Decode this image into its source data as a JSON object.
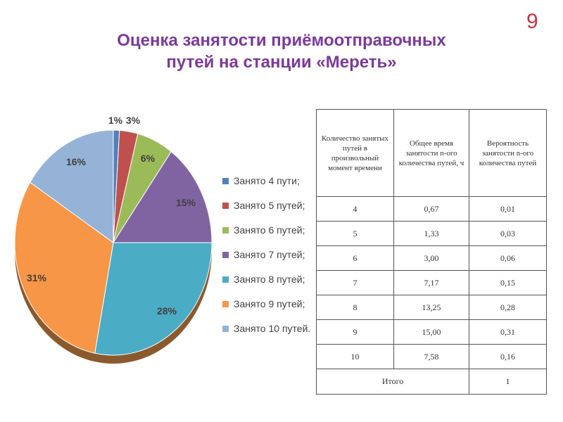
{
  "slide_number": "9",
  "title_lines": [
    "Оценка занятости приёмоотправочных",
    "путей на станции «Мереть»"
  ],
  "chart_data": {
    "type": "pie",
    "title": "",
    "series": [
      {
        "name": "Занято 4 пути;",
        "value": 1,
        "label": "1%",
        "color": "#4f81bd"
      },
      {
        "name": "Занято 5 путей;",
        "value": 3,
        "label": "3%",
        "color": "#c0504d"
      },
      {
        "name": "Занято 6 путей;",
        "value": 6,
        "label": "6%",
        "color": "#9bbb59"
      },
      {
        "name": "Занято 7 путей;",
        "value": 15,
        "label": "15%",
        "color": "#8064a2"
      },
      {
        "name": "Занято 8 путей;",
        "value": 28,
        "label": "28%",
        "color": "#4bacc6"
      },
      {
        "name": "Занято 9 путей;",
        "value": 31,
        "label": "31%",
        "color": "#f79646"
      },
      {
        "name": "Занято 10 путей.",
        "value": 16,
        "label": "16%",
        "color": "#95b3d7"
      }
    ],
    "legend_position": "right"
  },
  "table": {
    "headers": [
      "Количество занятых путей в произвольный момент времени",
      "Общее время занятости n-ого количества путей, ч",
      "Вероятность занятости n-ого количества путей"
    ],
    "rows": [
      [
        "4",
        "0,67",
        "0,01"
      ],
      [
        "5",
        "1,33",
        "0,03"
      ],
      [
        "6",
        "3,00",
        "0,06"
      ],
      [
        "7",
        "7,17",
        "0,15"
      ],
      [
        "8",
        "13,25",
        "0,28"
      ],
      [
        "9",
        "15,00",
        "0,31"
      ],
      [
        "10",
        "7,58",
        "0,16"
      ]
    ],
    "total": [
      "Итого",
      "1"
    ]
  }
}
